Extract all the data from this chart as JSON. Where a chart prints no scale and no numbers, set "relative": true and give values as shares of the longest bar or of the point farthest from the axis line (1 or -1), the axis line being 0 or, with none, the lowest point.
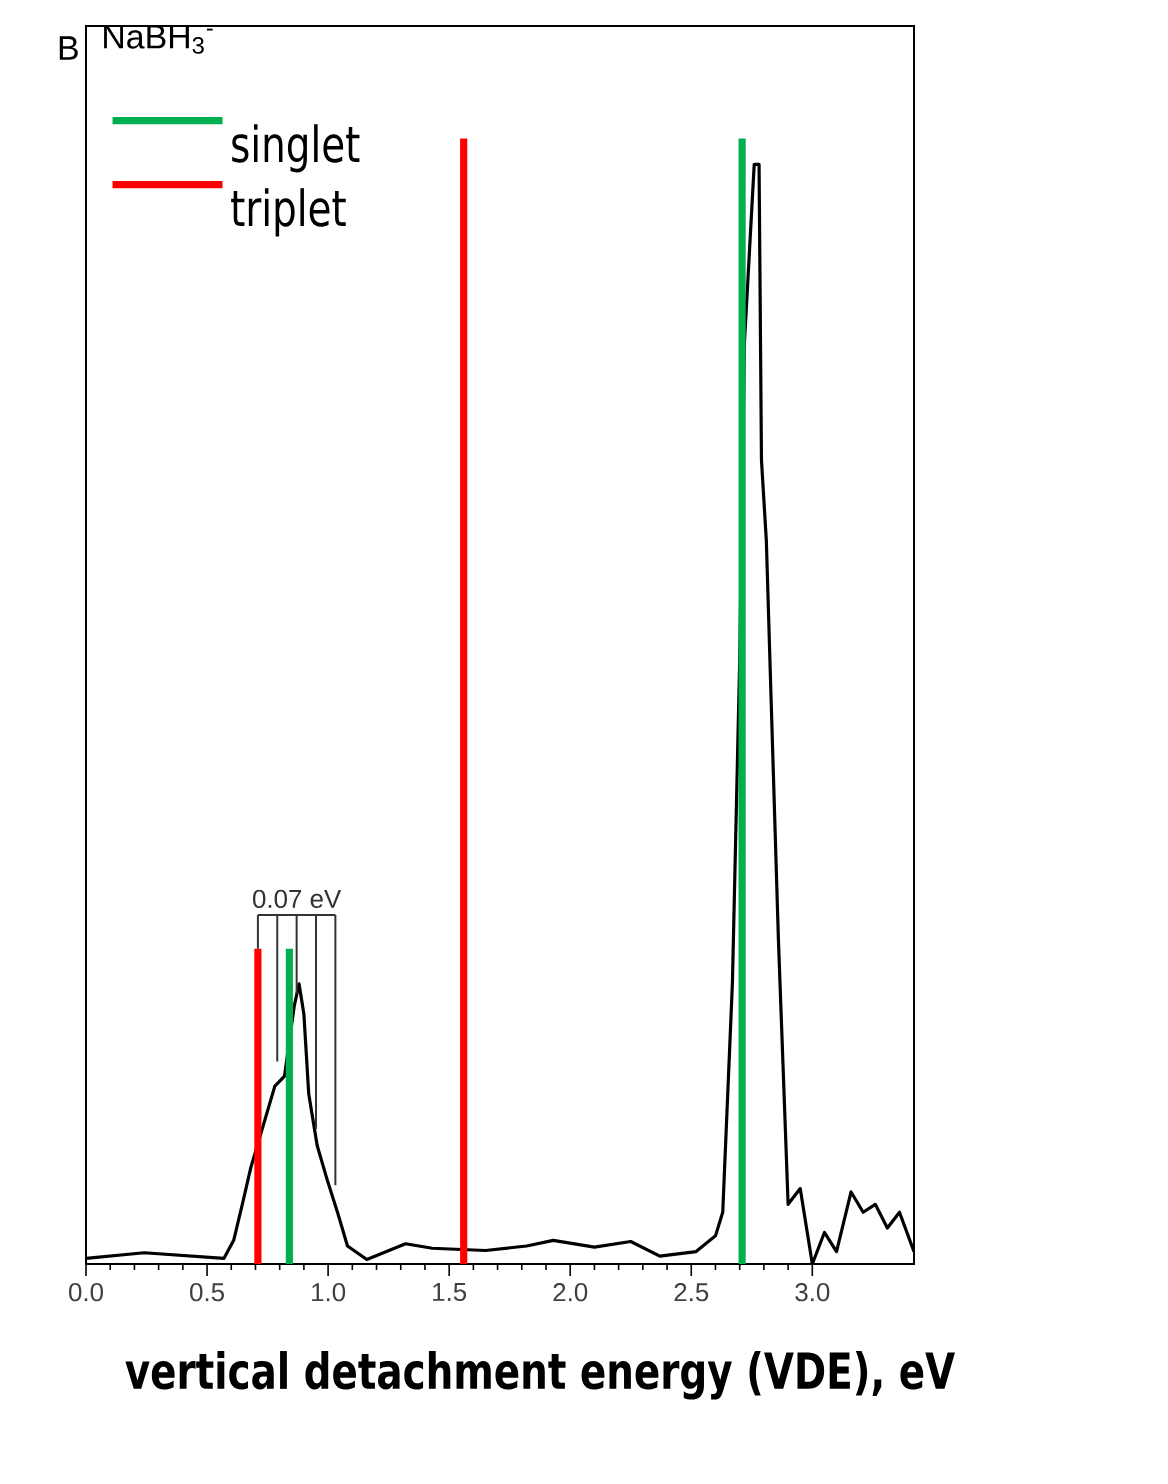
{
  "chart_data": {
    "type": "line",
    "title": "NaBH$_{3}$$^{-}$",
    "xlabel": "vertical detachment energy (VDE), eV",
    "annotations": [
      "B",
      "0.07 eV"
    ],
    "relative": true,
    "legend": "top left",
    "tick_labels": "x",
    "xlim": [
      0,
      3.42
    ],
    "xticks": [
      {
        "value": 0,
        "label": "0.0"
      },
      {
        "value": 0.5,
        "label": "0.5"
      },
      {
        "value": 1,
        "label": "1.0"
      },
      {
        "value": 1.5,
        "label": "1.5"
      },
      {
        "value": 2,
        "label": "2.0"
      },
      {
        "value": 2.5,
        "label": "2.5"
      },
      {
        "value": 3,
        "label": "3.0"
      }
    ],
    "series": [
      {
        "type": "line",
        "color": "#000000",
        "x": [
          0.0,
          0.24,
          0.57,
          0.61,
          0.65,
          0.68,
          0.78,
          0.82,
          0.86,
          0.88,
          0.9,
          0.92,
          0.955,
          0.996,
          1.04,
          1.08,
          1.16,
          1.32,
          1.43,
          1.65,
          1.82,
          1.93,
          2.1,
          2.25,
          2.37,
          2.52,
          2.6,
          2.63,
          2.67,
          2.7,
          2.72,
          2.76,
          2.78,
          2.79,
          2.81,
          2.83,
          2.86,
          2.9,
          2.95,
          3.0,
          3.05,
          3.1,
          3.16,
          3.21,
          3.26,
          3.31,
          3.36,
          3.42
        ],
        "values": [
          0.005,
          0.01,
          0.005,
          0.021,
          0.057,
          0.085,
          0.158,
          0.167,
          0.229,
          0.249,
          0.222,
          0.151,
          0.105,
          0.075,
          0.045,
          0.016,
          0.004,
          0.018,
          0.014,
          0.012,
          0.016,
          0.021,
          0.015,
          0.02,
          0.007,
          0.011,
          0.025,
          0.046,
          0.25,
          0.536,
          0.82,
          0.977,
          0.977,
          0.714,
          0.643,
          0.5,
          0.288,
          0.053,
          0.067,
          0.0,
          0.028,
          0.011,
          0.064,
          0.046,
          0.053,
          0.032,
          0.046,
          0.011
        ]
      },
      {
        "type": "bar",
        "name": "singlet",
        "color": "#00b050",
        "x": [
          0.84,
          2.71
        ],
        "values": [
          0.28,
          1.0
        ]
      },
      {
        "type": "bar",
        "name": "triplet",
        "color": "#ff0000",
        "x": [
          0.71,
          1.56
        ],
        "values": [
          0.28,
          1.0
        ]
      }
    ]
  }
}
